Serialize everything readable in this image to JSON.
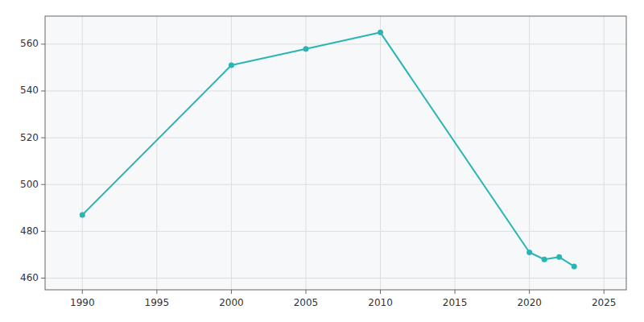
{
  "chart_data": {
    "type": "line",
    "x": [
      1990,
      2000,
      2005,
      2010,
      2020,
      2021,
      2022,
      2023
    ],
    "values": [
      487,
      551,
      558,
      565,
      471,
      468,
      469,
      465
    ],
    "color": "#2ab5b5",
    "marker": "circle",
    "xlim": [
      1987.5,
      2026.5
    ],
    "ylim": [
      455,
      572
    ],
    "xticks": [
      1990,
      1995,
      2000,
      2005,
      2010,
      2015,
      2020,
      2025
    ],
    "yticks": [
      460,
      480,
      500,
      520,
      540,
      560
    ],
    "grid": true
  }
}
